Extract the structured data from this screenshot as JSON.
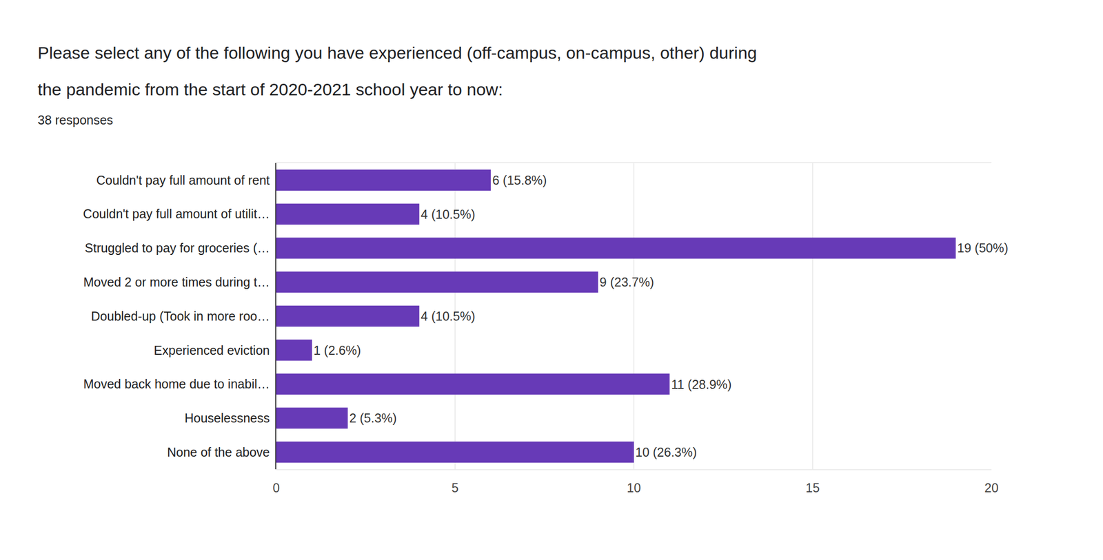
{
  "chart_data": {
    "type": "bar",
    "orientation": "horizontal",
    "title": "Please select any of the following you have experienced (off-campus, on-campus, other) during\nthe pandemic from the start of 2020-2021 school year to now:",
    "subtitle": "38 responses",
    "categories": [
      "Couldn't pay full amount of rent",
      "Couldn't pay full amount of utilit…",
      "Struggled to pay for groceries (…",
      "Moved 2 or more times during t…",
      "Doubled-up (Took in more roo…",
      "Experienced eviction",
      "Moved back home due to inabil…",
      "Houselessness",
      "None of the above"
    ],
    "values": [
      6,
      4,
      19,
      9,
      4,
      1,
      11,
      2,
      10
    ],
    "value_labels": [
      "6 (15.8%)",
      "4 (10.5%)",
      "19 (50%)",
      "9 (23.7%)",
      "4 (10.5%)",
      "1 (2.6%)",
      "11 (28.9%)",
      "2 (5.3%)",
      "10 (26.3%)"
    ],
    "data_labels": true,
    "color": "#673ab7",
    "xlim": [
      0,
      20
    ],
    "xticks": [
      0,
      5,
      10,
      15,
      20
    ],
    "grid": true
  }
}
